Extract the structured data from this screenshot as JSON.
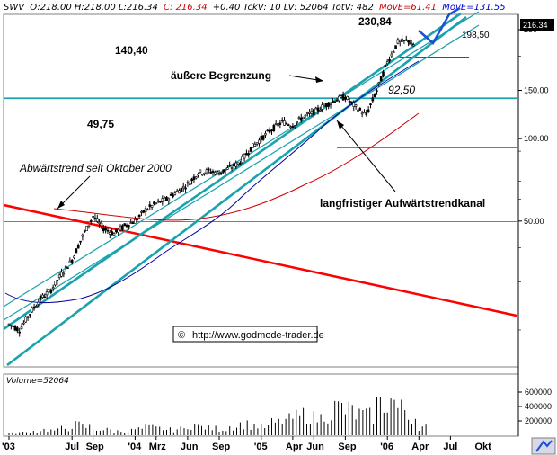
{
  "header": {
    "symbol": "SWV",
    "ohlc": "O:218.00 H:218.00 L:216.34",
    "close": "C: 216.34",
    "stats": "+0.40 TckV: 10 LV: 52064 TotV: 482",
    "ma1": "MovE=61.41",
    "ma2": "MovE=131.55",
    "price_badge": "216.34"
  },
  "levels": {
    "high_label": "230,84",
    "l198": "198,50",
    "l140": "140,40",
    "l92": "92,50",
    "l49": "49,75"
  },
  "annotations": {
    "outer": "äußere Begrenzung",
    "downtrend": "Abwärtstrend seit Oktober 2000",
    "channel": "langfristiger Aufwärtstrendkanal"
  },
  "volume_label": "Volume=52064",
  "copyright": "http://www.godmode-trader.de",
  "colors": {
    "candle": "#000000",
    "channel": "#1aa3ad",
    "downtrend": "#ff0000",
    "ma_red": "#cc0000",
    "ma_blue": "#000099",
    "level": "#1aa3ad",
    "target": "#1a4fd6"
  },
  "chart_data": {
    "type": "candlestick",
    "y_scale": "log",
    "ylim": [
      15,
      280
    ],
    "yticks": [
      {
        "value": 250,
        "label": "250"
      },
      {
        "value": 150,
        "label": "150.00"
      },
      {
        "value": 100,
        "label": "100.00"
      },
      {
        "value": 50,
        "label": "50.00"
      }
    ],
    "volume_ticks": [
      {
        "value": 600000,
        "label": "600000"
      },
      {
        "value": 400000,
        "label": "400000"
      },
      {
        "value": 200000,
        "label": "200000"
      }
    ],
    "volume_max": 700000,
    "x_labels": [
      "'03",
      "Jul",
      "Sep",
      "'04",
      "Mrz",
      "Jun",
      "Sep",
      "'05",
      "Apr",
      "Jun",
      "Sep",
      "'06",
      "Apr",
      "Jul",
      "Okt"
    ],
    "x_label_months": [
      0,
      6,
      8,
      12,
      14,
      17,
      20,
      24,
      27,
      29,
      32,
      36,
      39,
      42,
      45
    ],
    "horizontal_levels": [
      198.5,
      140.4,
      92.5,
      49.75
    ],
    "price_path": [
      [
        0,
        21
      ],
      [
        1,
        20
      ],
      [
        2,
        23
      ],
      [
        3,
        26
      ],
      [
        4,
        28
      ],
      [
        5,
        32
      ],
      [
        6,
        36
      ],
      [
        7,
        44
      ],
      [
        8,
        52
      ],
      [
        9,
        47
      ],
      [
        10,
        45
      ],
      [
        11,
        48
      ],
      [
        12,
        50
      ],
      [
        13,
        55
      ],
      [
        14,
        58
      ],
      [
        15,
        60
      ],
      [
        16,
        64
      ],
      [
        17,
        68
      ],
      [
        18,
        75
      ],
      [
        19,
        76
      ],
      [
        20,
        75
      ],
      [
        21,
        78
      ],
      [
        22,
        82
      ],
      [
        23,
        92
      ],
      [
        24,
        100
      ],
      [
        25,
        108
      ],
      [
        26,
        115
      ],
      [
        27,
        112
      ],
      [
        28,
        120
      ],
      [
        29,
        125
      ],
      [
        30,
        132
      ],
      [
        31,
        138
      ],
      [
        32,
        142
      ],
      [
        33,
        130
      ],
      [
        34,
        122
      ],
      [
        35,
        150
      ],
      [
        36,
        190
      ],
      [
        37,
        225
      ],
      [
        38,
        228
      ],
      [
        38.6,
        216
      ]
    ],
    "volume": [
      30000,
      40000,
      60000,
      80000,
      70000,
      100000,
      150000,
      120000,
      90000,
      80000,
      60000,
      70000,
      90000,
      110000,
      100000,
      80000,
      90000,
      150000,
      120000,
      100000,
      90000,
      130000,
      160000,
      140000,
      120000,
      180000,
      220000,
      260000,
      300000,
      250000,
      320000,
      400000,
      360000,
      300000,
      280000,
      450000,
      500000,
      380000,
      260000,
      120000
    ]
  }
}
